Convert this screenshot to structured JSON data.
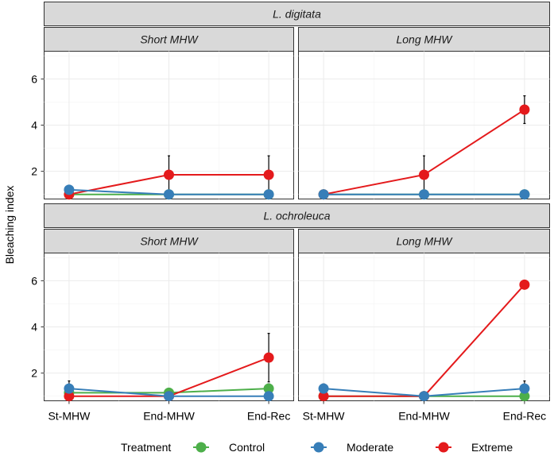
{
  "chart_data": {
    "type": "line",
    "ylabel": "Bleaching index",
    "xlabel": "",
    "x_categories": [
      "St-MHW",
      "End-MHW",
      "End-Rec"
    ],
    "y_ticks": [
      2,
      4,
      6
    ],
    "ylim": [
      0.8,
      7.2
    ],
    "legend": {
      "title": "Treatment",
      "position": "bottom",
      "entries": [
        {
          "name": "Control",
          "color": "#4daf4a"
        },
        {
          "name": "Moderate",
          "color": "#377eb8"
        },
        {
          "name": "Extreme",
          "color": "#e41a1c"
        }
      ]
    },
    "species": [
      {
        "label": "L. digitata",
        "panels": [
          {
            "label": "Short MHW",
            "series": [
              {
                "name": "Control",
                "values": [
                  1.0,
                  1.0,
                  1.0
                ],
                "errors": [
                  0.0,
                  0.0,
                  0.0
                ]
              },
              {
                "name": "Moderate",
                "values": [
                  1.2,
                  1.0,
                  1.0
                ],
                "errors": [
                  0.1,
                  0.0,
                  0.0
                ]
              },
              {
                "name": "Extreme",
                "values": [
                  1.0,
                  1.85,
                  1.85
                ],
                "errors": [
                  0.0,
                  0.82,
                  0.82
                ]
              }
            ]
          },
          {
            "label": "Long MHW",
            "series": [
              {
                "name": "Control",
                "values": [
                  1.0,
                  1.0,
                  1.0
                ],
                "errors": [
                  0.0,
                  0.0,
                  0.0
                ]
              },
              {
                "name": "Moderate",
                "values": [
                  1.0,
                  1.0,
                  1.0
                ],
                "errors": [
                  0.0,
                  0.0,
                  0.0
                ]
              },
              {
                "name": "Extreme",
                "values": [
                  1.0,
                  1.85,
                  4.67
                ],
                "errors": [
                  0.0,
                  0.82,
                  0.6
                ]
              }
            ]
          }
        ]
      },
      {
        "label": "L. ochroleuca",
        "panels": [
          {
            "label": "Short MHW",
            "series": [
              {
                "name": "Control",
                "values": [
                  1.15,
                  1.15,
                  1.33
                ],
                "errors": [
                  0.1,
                  0.1,
                  0.2
                ]
              },
              {
                "name": "Moderate",
                "values": [
                  1.33,
                  1.0,
                  1.0
                ],
                "errors": [
                  0.33,
                  0.0,
                  0.0
                ]
              },
              {
                "name": "Extreme",
                "values": [
                  1.0,
                  1.0,
                  2.67
                ],
                "errors": [
                  0.0,
                  0.0,
                  1.05
                ]
              }
            ]
          },
          {
            "label": "Long MHW",
            "series": [
              {
                "name": "Control",
                "values": [
                  1.0,
                  1.0,
                  1.0
                ],
                "errors": [
                  0.0,
                  0.0,
                  0.0
                ]
              },
              {
                "name": "Moderate",
                "values": [
                  1.33,
                  1.0,
                  1.33
                ],
                "errors": [
                  0.2,
                  0.0,
                  0.33
                ]
              },
              {
                "name": "Extreme",
                "values": [
                  1.0,
                  1.0,
                  5.83
                ],
                "errors": [
                  0.0,
                  0.0,
                  0.1
                ]
              }
            ]
          }
        ]
      }
    ]
  }
}
